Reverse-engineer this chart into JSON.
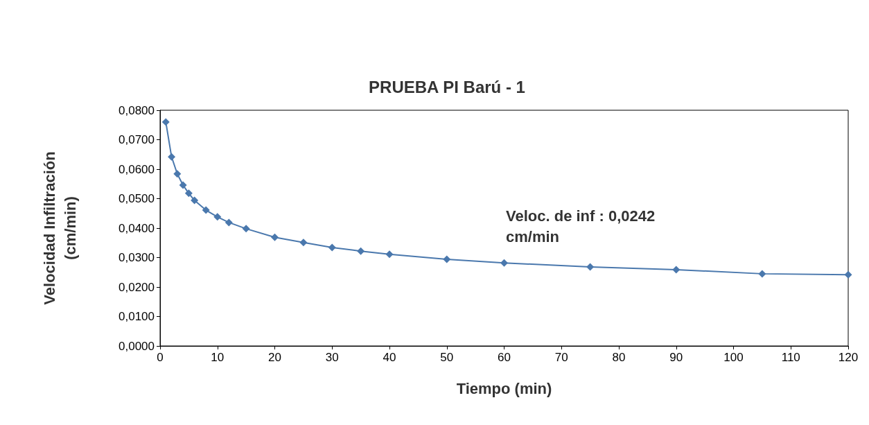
{
  "chart_data": {
    "type": "line",
    "title": "PRUEBA PI Barú - 1",
    "xlabel": "Tiempo (min)",
    "ylabel": "Velocidad Infiltración\n(cm/min)",
    "x": [
      1,
      2,
      3,
      4,
      5,
      6,
      8,
      10,
      12,
      15,
      20,
      25,
      30,
      35,
      40,
      50,
      60,
      75,
      90,
      105,
      120
    ],
    "series": [
      {
        "color": "#4a78ad",
        "values": [
          0.076,
          0.0642,
          0.0584,
          0.0546,
          0.0518,
          0.0494,
          0.0461,
          0.0438,
          0.0419,
          0.0398,
          0.0369,
          0.0351,
          0.0334,
          0.0322,
          0.0311,
          0.0294,
          0.0282,
          0.0268,
          0.0259,
          0.0245,
          0.0242
        ]
      }
    ],
    "xlim": [
      0,
      120
    ],
    "xticks": [
      0,
      10,
      20,
      30,
      40,
      50,
      60,
      70,
      80,
      90,
      100,
      110,
      120
    ],
    "ylim": [
      0,
      0.08
    ],
    "yticks": [
      {
        "value": 0,
        "label": "0,0000"
      },
      {
        "value": 0.01,
        "label": "0,0100"
      },
      {
        "value": 0.02,
        "label": "0,0200"
      },
      {
        "value": 0.03,
        "label": "0,0300"
      },
      {
        "value": 0.04,
        "label": "0,0400"
      },
      {
        "value": 0.05,
        "label": "0,0500"
      },
      {
        "value": 0.06,
        "label": "0,0600"
      },
      {
        "value": 0.07,
        "label": "0,0700"
      },
      {
        "value": 0.08,
        "label": "0,0800"
      }
    ],
    "annotations": [
      "Veloc. de inf : 0,0242\ncm/min"
    ],
    "marker": "diamond",
    "line_style": "solid",
    "grid": false
  }
}
